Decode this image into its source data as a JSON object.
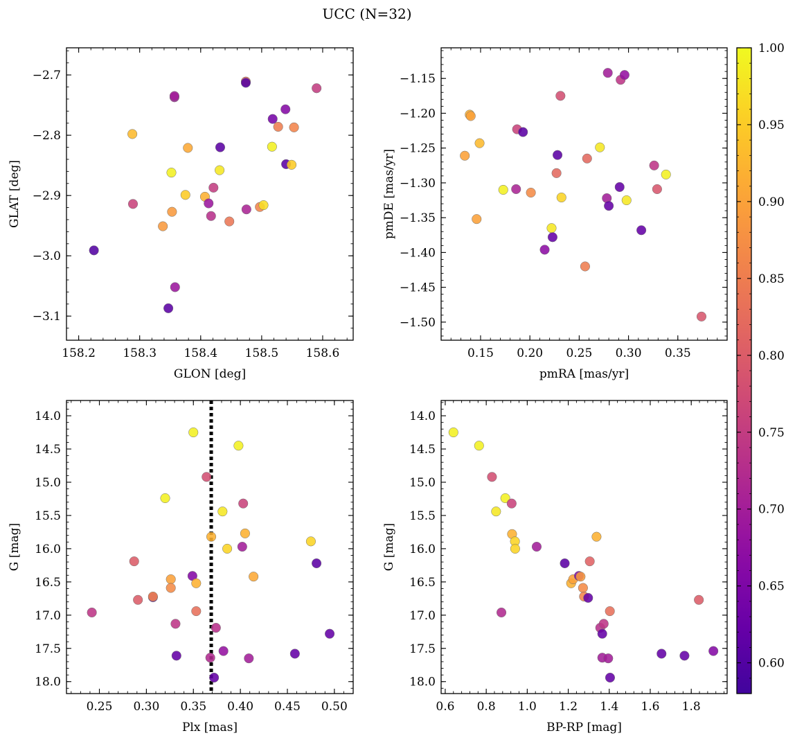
{
  "figure": {
    "title": "UCC (N=32)",
    "colorbar": {
      "min": 0.58,
      "max": 1.0,
      "ticks": [
        0.6,
        0.65,
        0.7,
        0.75,
        0.8,
        0.85,
        0.9,
        0.95,
        1.0
      ],
      "colormap": "plasma"
    }
  },
  "chart_data": [
    {
      "type": "scatter",
      "xlabel": "GLON [deg]",
      "ylabel": "GLAT [deg]",
      "xlim": [
        158.18,
        158.65
      ],
      "ylim": [
        -3.14,
        -2.655
      ],
      "xticks": [
        158.2,
        158.3,
        158.4,
        158.5,
        158.6
      ],
      "xtick_decimals": 1,
      "yticks": [
        -3.1,
        -3.0,
        -2.9,
        -2.8,
        -2.7
      ],
      "ytick_decimals": 1,
      "y_inverted": false,
      "points": [
        {
          "x": 158.225,
          "y": -2.991,
          "c": 0.6
        },
        {
          "x": 158.288,
          "y": -2.798,
          "c": 0.93
        },
        {
          "x": 158.289,
          "y": -2.914,
          "c": 0.76
        },
        {
          "x": 158.338,
          "y": -2.951,
          "c": 0.89
        },
        {
          "x": 158.347,
          "y": -3.087,
          "c": 0.61
        },
        {
          "x": 158.352,
          "y": -2.862,
          "c": 0.99
        },
        {
          "x": 158.353,
          "y": -2.927,
          "c": 0.89
        },
        {
          "x": 158.357,
          "y": -2.737,
          "c": 0.7
        },
        {
          "x": 158.357,
          "y": -2.735,
          "c": 0.7
        },
        {
          "x": 158.358,
          "y": -3.052,
          "c": 0.69
        },
        {
          "x": 158.375,
          "y": -2.899,
          "c": 0.95
        },
        {
          "x": 158.379,
          "y": -2.821,
          "c": 0.91
        },
        {
          "x": 158.407,
          "y": -2.902,
          "c": 0.92
        },
        {
          "x": 158.413,
          "y": -2.913,
          "c": 0.69
        },
        {
          "x": 158.417,
          "y": -2.934,
          "c": 0.73
        },
        {
          "x": 158.421,
          "y": -2.887,
          "c": 0.75
        },
        {
          "x": 158.431,
          "y": -2.858,
          "c": 0.98
        },
        {
          "x": 158.432,
          "y": -2.82,
          "c": 0.61
        },
        {
          "x": 158.447,
          "y": -2.943,
          "c": 0.84
        },
        {
          "x": 158.474,
          "y": -2.711,
          "c": 0.83
        },
        {
          "x": 158.474,
          "y": -2.713,
          "c": 0.6
        },
        {
          "x": 158.475,
          "y": -2.923,
          "c": 0.71
        },
        {
          "x": 158.497,
          "y": -2.919,
          "c": 0.86
        },
        {
          "x": 158.503,
          "y": -2.916,
          "c": 0.97
        },
        {
          "x": 158.517,
          "y": -2.819,
          "c": 0.99
        },
        {
          "x": 158.518,
          "y": -2.773,
          "c": 0.64
        },
        {
          "x": 158.527,
          "y": -2.786,
          "c": 0.85
        },
        {
          "x": 158.539,
          "y": -2.757,
          "c": 0.66
        },
        {
          "x": 158.54,
          "y": -2.848,
          "c": 0.61
        },
        {
          "x": 158.549,
          "y": -2.849,
          "c": 0.95
        },
        {
          "x": 158.553,
          "y": -2.787,
          "c": 0.86
        },
        {
          "x": 158.59,
          "y": -2.722,
          "c": 0.75
        }
      ]
    },
    {
      "type": "scatter",
      "xlabel": "pmRA [mas/yr]",
      "ylabel": "pmDE [mas/yr]",
      "xlim": [
        0.11,
        0.4
      ],
      "ylim": [
        -1.526,
        -1.106
      ],
      "xticks": [
        0.15,
        0.2,
        0.25,
        0.3,
        0.35
      ],
      "xtick_decimals": 2,
      "yticks": [
        -1.5,
        -1.45,
        -1.4,
        -1.35,
        -1.3,
        -1.25,
        -1.2,
        -1.15
      ],
      "ytick_decimals": 2,
      "y_inverted": false,
      "points": [
        {
          "x": 0.134,
          "y": -1.261,
          "c": 0.9
        },
        {
          "x": 0.139,
          "y": -1.202,
          "c": 0.92
        },
        {
          "x": 0.14,
          "y": -1.204,
          "c": 0.9
        },
        {
          "x": 0.146,
          "y": -1.352,
          "c": 0.9
        },
        {
          "x": 0.149,
          "y": -1.243,
          "c": 0.93
        },
        {
          "x": 0.173,
          "y": -1.31,
          "c": 0.99
        },
        {
          "x": 0.186,
          "y": -1.309,
          "c": 0.71
        },
        {
          "x": 0.187,
          "y": -1.223,
          "c": 0.76
        },
        {
          "x": 0.193,
          "y": -1.227,
          "c": 0.61
        },
        {
          "x": 0.201,
          "y": -1.314,
          "c": 0.87
        },
        {
          "x": 0.215,
          "y": -1.396,
          "c": 0.67
        },
        {
          "x": 0.222,
          "y": -1.365,
          "c": 0.98
        },
        {
          "x": 0.223,
          "y": -1.378,
          "c": 0.62
        },
        {
          "x": 0.227,
          "y": -1.286,
          "c": 0.82
        },
        {
          "x": 0.228,
          "y": -1.26,
          "c": 0.61
        },
        {
          "x": 0.231,
          "y": -1.175,
          "c": 0.78
        },
        {
          "x": 0.232,
          "y": -1.321,
          "c": 0.96
        },
        {
          "x": 0.256,
          "y": -1.42,
          "c": 0.85
        },
        {
          "x": 0.258,
          "y": -1.265,
          "c": 0.82
        },
        {
          "x": 0.271,
          "y": -1.249,
          "c": 0.98
        },
        {
          "x": 0.278,
          "y": -1.322,
          "c": 0.7
        },
        {
          "x": 0.279,
          "y": -1.142,
          "c": 0.7
        },
        {
          "x": 0.28,
          "y": -1.333,
          "c": 0.62
        },
        {
          "x": 0.291,
          "y": -1.306,
          "c": 0.62
        },
        {
          "x": 0.292,
          "y": -1.152,
          "c": 0.74
        },
        {
          "x": 0.296,
          "y": -1.145,
          "c": 0.68
        },
        {
          "x": 0.298,
          "y": -1.325,
          "c": 0.98
        },
        {
          "x": 0.313,
          "y": -1.368,
          "c": 0.62
        },
        {
          "x": 0.326,
          "y": -1.275,
          "c": 0.74
        },
        {
          "x": 0.329,
          "y": -1.309,
          "c": 0.79
        },
        {
          "x": 0.338,
          "y": -1.288,
          "c": 0.99
        },
        {
          "x": 0.374,
          "y": -1.492,
          "c": 0.79
        }
      ]
    },
    {
      "type": "scatter",
      "xlabel": "Plx [mas]",
      "ylabel": "G [mag]",
      "xlim": [
        0.215,
        0.52
      ],
      "ylim": [
        18.18,
        13.77
      ],
      "xticks": [
        0.25,
        0.3,
        0.35,
        0.4,
        0.45,
        0.5
      ],
      "xtick_decimals": 2,
      "yticks": [
        14.0,
        14.5,
        15.0,
        15.5,
        16.0,
        16.5,
        17.0,
        17.5,
        18.0
      ],
      "ytick_decimals": 1,
      "y_inverted": true,
      "vline": {
        "x": 0.369,
        "style": "dotted"
      },
      "points": [
        {
          "x": 0.242,
          "y": 16.96,
          "c": 0.74
        },
        {
          "x": 0.287,
          "y": 16.19,
          "c": 0.8
        },
        {
          "x": 0.291,
          "y": 16.77,
          "c": 0.8
        },
        {
          "x": 0.307,
          "y": 16.73,
          "c": 0.62
        },
        {
          "x": 0.307,
          "y": 16.72,
          "c": 0.86
        },
        {
          "x": 0.32,
          "y": 15.24,
          "c": 0.99
        },
        {
          "x": 0.326,
          "y": 16.46,
          "c": 0.9
        },
        {
          "x": 0.326,
          "y": 16.59,
          "c": 0.87
        },
        {
          "x": 0.331,
          "y": 17.13,
          "c": 0.74
        },
        {
          "x": 0.332,
          "y": 17.61,
          "c": 0.62
        },
        {
          "x": 0.349,
          "y": 16.41,
          "c": 0.66
        },
        {
          "x": 0.35,
          "y": 14.25,
          "c": 0.99
        },
        {
          "x": 0.353,
          "y": 16.52,
          "c": 0.92
        },
        {
          "x": 0.353,
          "y": 16.94,
          "c": 0.83
        },
        {
          "x": 0.364,
          "y": 14.92,
          "c": 0.78
        },
        {
          "x": 0.368,
          "y": 17.64,
          "c": 0.72
        },
        {
          "x": 0.369,
          "y": 15.82,
          "c": 0.92
        },
        {
          "x": 0.372,
          "y": 17.94,
          "c": 0.62
        },
        {
          "x": 0.374,
          "y": 17.19,
          "c": 0.73
        },
        {
          "x": 0.381,
          "y": 15.44,
          "c": 0.98
        },
        {
          "x": 0.382,
          "y": 17.54,
          "c": 0.68
        },
        {
          "x": 0.386,
          "y": 16.0,
          "c": 0.96
        },
        {
          "x": 0.398,
          "y": 14.45,
          "c": 0.99
        },
        {
          "x": 0.402,
          "y": 15.97,
          "c": 0.7
        },
        {
          "x": 0.403,
          "y": 15.32,
          "c": 0.76
        },
        {
          "x": 0.405,
          "y": 15.77,
          "c": 0.92
        },
        {
          "x": 0.409,
          "y": 17.65,
          "c": 0.7
        },
        {
          "x": 0.414,
          "y": 16.42,
          "c": 0.91
        },
        {
          "x": 0.458,
          "y": 17.58,
          "c": 0.62
        },
        {
          "x": 0.475,
          "y": 15.89,
          "c": 0.96
        },
        {
          "x": 0.481,
          "y": 16.22,
          "c": 0.61
        },
        {
          "x": 0.495,
          "y": 17.28,
          "c": 0.62
        }
      ]
    },
    {
      "type": "scatter",
      "xlabel": "BP-RP [mag]",
      "ylabel": "G [mag]",
      "xlim": [
        0.58,
        1.975
      ],
      "ylim": [
        18.18,
        13.77
      ],
      "xticks": [
        0.6,
        0.8,
        1.0,
        1.2,
        1.4,
        1.6,
        1.8
      ],
      "xtick_decimals": 1,
      "yticks": [
        14.0,
        14.5,
        15.0,
        15.5,
        16.0,
        16.5,
        17.0,
        17.5,
        18.0
      ],
      "ytick_decimals": 1,
      "y_inverted": true,
      "points": [
        {
          "x": 0.64,
          "y": 14.25,
          "c": 0.99
        },
        {
          "x": 0.765,
          "y": 14.45,
          "c": 0.99
        },
        {
          "x": 0.828,
          "y": 14.92,
          "c": 0.78
        },
        {
          "x": 0.848,
          "y": 15.44,
          "c": 0.98
        },
        {
          "x": 0.874,
          "y": 16.96,
          "c": 0.72
        },
        {
          "x": 0.893,
          "y": 15.24,
          "c": 0.99
        },
        {
          "x": 0.924,
          "y": 15.32,
          "c": 0.76
        },
        {
          "x": 0.926,
          "y": 15.78,
          "c": 0.92
        },
        {
          "x": 0.94,
          "y": 15.89,
          "c": 0.96
        },
        {
          "x": 0.941,
          "y": 16.0,
          "c": 0.96
        },
        {
          "x": 1.046,
          "y": 15.97,
          "c": 0.7
        },
        {
          "x": 1.183,
          "y": 16.22,
          "c": 0.61
        },
        {
          "x": 1.214,
          "y": 16.52,
          "c": 0.92
        },
        {
          "x": 1.224,
          "y": 16.46,
          "c": 0.9
        },
        {
          "x": 1.252,
          "y": 16.41,
          "c": 0.66
        },
        {
          "x": 1.26,
          "y": 16.42,
          "c": 0.89
        },
        {
          "x": 1.272,
          "y": 16.59,
          "c": 0.87
        },
        {
          "x": 1.277,
          "y": 16.72,
          "c": 0.86
        },
        {
          "x": 1.297,
          "y": 16.74,
          "c": 0.62
        },
        {
          "x": 1.305,
          "y": 16.19,
          "c": 0.81
        },
        {
          "x": 1.338,
          "y": 15.82,
          "c": 0.92
        },
        {
          "x": 1.356,
          "y": 17.19,
          "c": 0.73
        },
        {
          "x": 1.366,
          "y": 17.28,
          "c": 0.62
        },
        {
          "x": 1.366,
          "y": 17.64,
          "c": 0.7
        },
        {
          "x": 1.373,
          "y": 17.13,
          "c": 0.74
        },
        {
          "x": 1.395,
          "y": 17.65,
          "c": 0.7
        },
        {
          "x": 1.403,
          "y": 16.94,
          "c": 0.83
        },
        {
          "x": 1.404,
          "y": 17.94,
          "c": 0.62
        },
        {
          "x": 1.655,
          "y": 17.58,
          "c": 0.62
        },
        {
          "x": 1.767,
          "y": 17.61,
          "c": 0.62
        },
        {
          "x": 1.837,
          "y": 16.77,
          "c": 0.8
        },
        {
          "x": 1.908,
          "y": 17.54,
          "c": 0.66
        }
      ]
    }
  ]
}
